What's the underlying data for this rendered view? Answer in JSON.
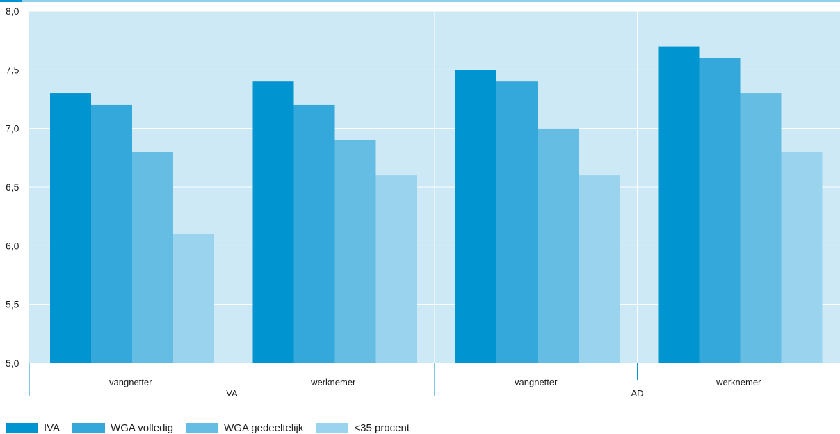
{
  "chart_data": {
    "type": "bar",
    "title": "",
    "xlabel": "",
    "ylabel": "",
    "ylim": [
      5.0,
      8.0
    ],
    "yticks": [
      "5,0",
      "5,5",
      "6,0",
      "6,5",
      "7,0",
      "7,5",
      "8,0"
    ],
    "ytick_values": [
      5.0,
      5.5,
      6.0,
      6.5,
      7.0,
      7.5,
      8.0
    ],
    "groups": [
      "VA",
      "AD"
    ],
    "categories": [
      "vangnetter",
      "werknemer",
      "vangnetter",
      "werknemer"
    ],
    "category_group": [
      0,
      0,
      1,
      1
    ],
    "series": [
      {
        "name": "IVA",
        "color": "#0094d0",
        "values": [
          7.3,
          7.4,
          7.5,
          7.7
        ]
      },
      {
        "name": "WGA volledig",
        "color": "#34a8da",
        "values": [
          7.2,
          7.2,
          7.4,
          7.6
        ]
      },
      {
        "name": "WGA gedeeltelijk",
        "color": "#66bde3",
        "values": [
          6.8,
          6.9,
          7.0,
          7.3
        ]
      },
      {
        "name": "<35 procent",
        "color": "#99d3ee",
        "values": [
          6.1,
          6.6,
          6.6,
          6.8
        ]
      }
    ],
    "grid": true,
    "plot_background": "#cce9f5",
    "legend_position": "bottom-left"
  }
}
